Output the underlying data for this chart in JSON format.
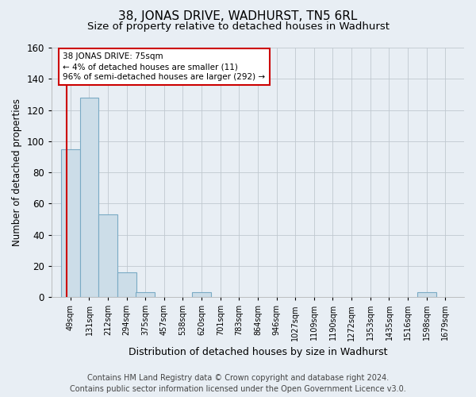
{
  "title": "38, JONAS DRIVE, WADHURST, TN5 6RL",
  "subtitle": "Size of property relative to detached houses in Wadhurst",
  "xlabel": "Distribution of detached houses by size in Wadhurst",
  "ylabel": "Number of detached properties",
  "bins": [
    49,
    131,
    212,
    294,
    375,
    457,
    538,
    620,
    701,
    783,
    864,
    946,
    1027,
    1109,
    1190,
    1272,
    1353,
    1435,
    1516,
    1598,
    1679
  ],
  "bar_heights": [
    95,
    128,
    53,
    16,
    3,
    0,
    0,
    3,
    0,
    0,
    0,
    0,
    0,
    0,
    0,
    0,
    0,
    0,
    0,
    3,
    0
  ],
  "bar_color": "#ccdde8",
  "bar_edge_color": "#7aaac4",
  "property_size": 75,
  "property_line_color": "#cc0000",
  "annotation_line1": "38 JONAS DRIVE: 75sqm",
  "annotation_line2": "← 4% of detached houses are smaller (11)",
  "annotation_line3": "96% of semi-detached houses are larger (292) →",
  "annotation_border_color": "#cc0000",
  "ylim": [
    0,
    160
  ],
  "yticks": [
    0,
    20,
    40,
    60,
    80,
    100,
    120,
    140,
    160
  ],
  "footer_line1": "Contains HM Land Registry data © Crown copyright and database right 2024.",
  "footer_line2": "Contains public sector information licensed under the Open Government Licence v3.0.",
  "background_color": "#e8eef4",
  "plot_bg_color": "#e8eef4",
  "grid_color": "#c0c8d0",
  "title_fontsize": 11,
  "subtitle_fontsize": 9.5,
  "tick_label_fontsize": 7,
  "ylabel_fontsize": 8.5,
  "xlabel_fontsize": 9,
  "footer_fontsize": 7
}
